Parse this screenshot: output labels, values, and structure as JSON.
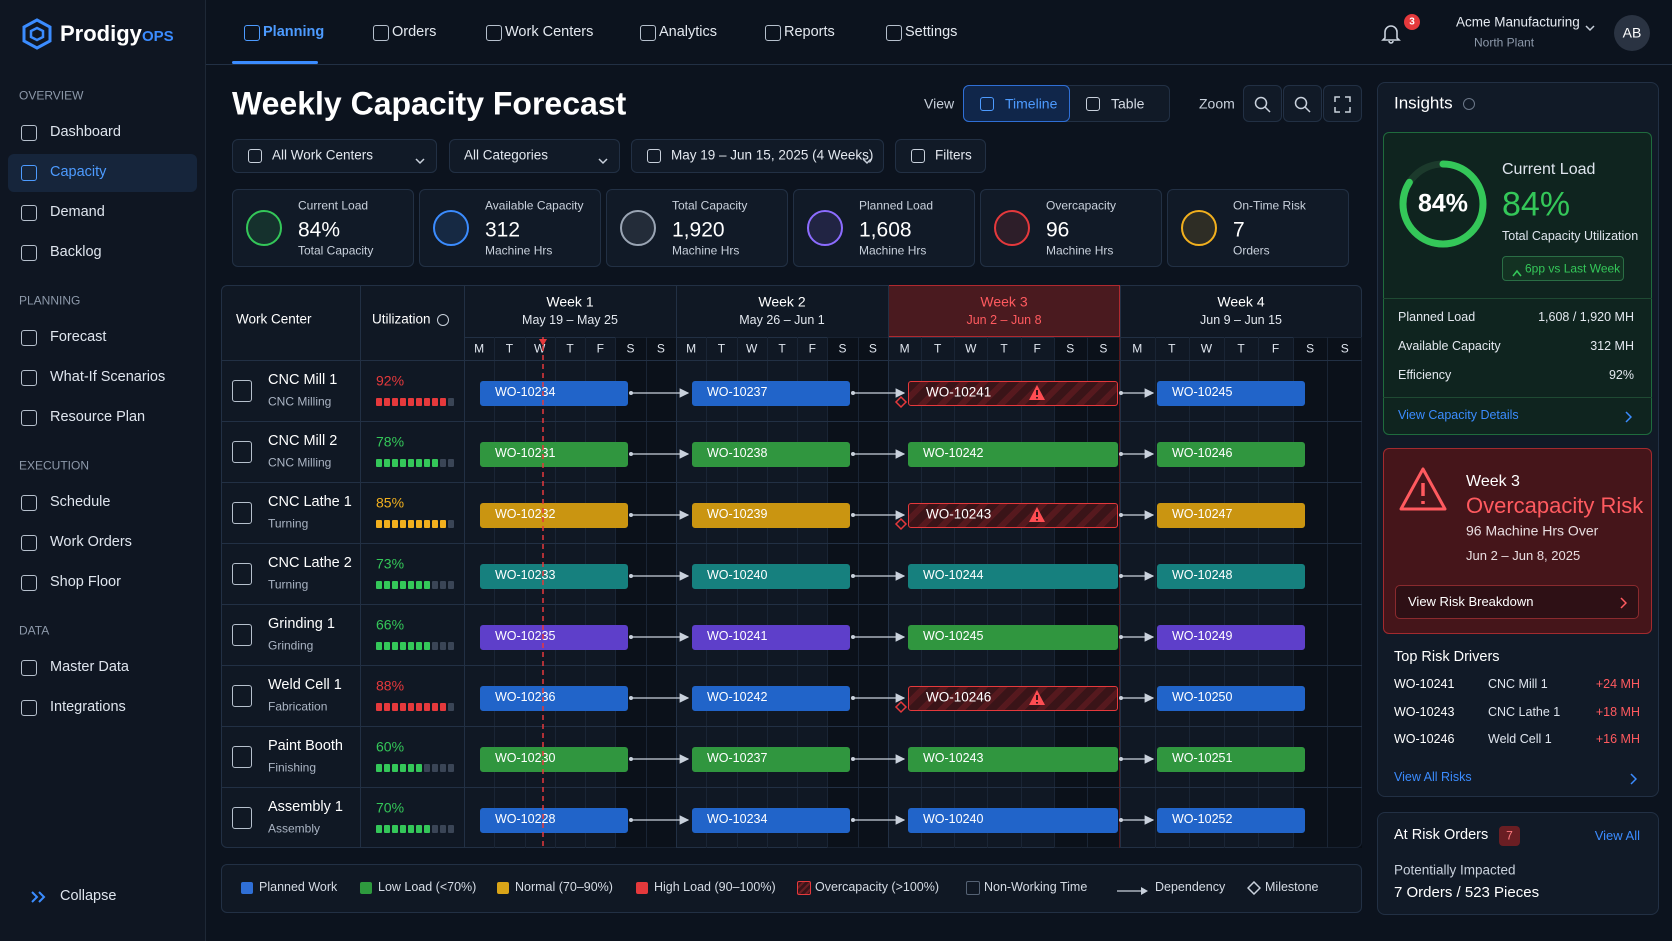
{
  "brand": {
    "name": "Prodigy",
    "suffix": "OPS"
  },
  "sidebar": {
    "sections": [
      {
        "title": "OVERVIEW",
        "items": [
          "Dashboard",
          "Capacity",
          "Demand",
          "Backlog"
        ]
      },
      {
        "title": "PLANNING",
        "items": [
          "Forecast",
          "What-If Scenarios",
          "Resource Plan"
        ]
      },
      {
        "title": "EXECUTION",
        "items": [
          "Schedule",
          "Work Orders",
          "Shop Floor"
        ]
      },
      {
        "title": "DATA",
        "items": [
          "Master Data",
          "Integrations"
        ]
      }
    ],
    "collapse": "Collapse"
  },
  "nav": {
    "tabs": [
      "Planning",
      "Orders",
      "Work Centers",
      "Analytics",
      "Reports",
      "Settings"
    ],
    "notifications": "3",
    "company": "Acme Manufacturing",
    "plant": "North Plant",
    "avatar": "AB"
  },
  "header": {
    "title": "Weekly Capacity Forecast",
    "view_label": "View",
    "views": [
      "Timeline",
      "Table"
    ],
    "zoom_label": "Zoom"
  },
  "filters": [
    "All Work Centers",
    "All Categories",
    "May 19 – Jun 15, 2025 (4 Weeks)",
    "Filters"
  ],
  "kpis": [
    {
      "label": "Current Load",
      "value": "84%",
      "sub": "Total Capacity"
    },
    {
      "label": "Available Capacity",
      "value": "312",
      "sub": "Machine Hrs"
    },
    {
      "label": "Total Capacity",
      "value": "1,920",
      "sub": "Machine Hrs"
    },
    {
      "label": "Planned Load",
      "value": "1,608",
      "sub": "Machine Hrs"
    },
    {
      "label": "Overcapacity",
      "value": "96",
      "sub": "Machine Hrs"
    },
    {
      "label": "On-Time Risk",
      "value": "7",
      "sub": "Orders"
    }
  ],
  "timeline": {
    "columns": [
      "Work Center",
      "Utilization"
    ],
    "weeks": [
      {
        "title": "Week 1",
        "range": "May 19 – May 25"
      },
      {
        "title": "Week 2",
        "range": "May 26 – Jun 1"
      },
      {
        "title": "Week 3",
        "range": "Jun 2 – Jun 8"
      },
      {
        "title": "Week 4",
        "range": "Jun 9 – Jun 15"
      }
    ],
    "days": [
      "M",
      "T",
      "W",
      "T",
      "F",
      "S",
      "S"
    ],
    "rows": [
      {
        "name": "CNC Mill 1",
        "type": "CNC Milling",
        "utilization": "92%",
        "util_color": "#e5393c",
        "orders": [
          "WO-10234",
          "WO-10237",
          "WO-10241",
          "WO-10245"
        ],
        "colors": [
          "#1f5fbf",
          "#1f5fbf",
          "#e5393c",
          "#1f5fbf"
        ],
        "risk": [
          false,
          false,
          true,
          false
        ]
      },
      {
        "name": "CNC Mill 2",
        "type": "CNC Milling",
        "utilization": "78%",
        "util_color": "#34c759",
        "orders": [
          "WO-10231",
          "WO-10238",
          "WO-10242",
          "WO-10246"
        ],
        "colors": [
          "#2e8f3c",
          "#2e8f3c",
          "#2e8f3c",
          "#2e8f3c"
        ],
        "risk": [
          false,
          false,
          false,
          false
        ]
      },
      {
        "name": "CNC Lathe 1",
        "type": "Turning",
        "utilization": "85%",
        "util_color": "#f2b01e",
        "orders": [
          "WO-10232",
          "WO-10239",
          "WO-10243",
          "WO-10247"
        ],
        "colors": [
          "#c08e10",
          "#c08e10",
          "#e5393c",
          "#c08e10"
        ],
        "risk": [
          false,
          false,
          true,
          false
        ]
      },
      {
        "name": "CNC Lathe 2",
        "type": "Turning",
        "utilization": "73%",
        "util_color": "#34c759",
        "orders": [
          "WO-10233",
          "WO-10240",
          "WO-10244",
          "WO-10248"
        ],
        "colors": [
          "#157a78",
          "#157a78",
          "#157a78",
          "#157a78"
        ],
        "risk": [
          false,
          false,
          false,
          false
        ]
      },
      {
        "name": "Grinding 1",
        "type": "Grinding",
        "utilization": "66%",
        "util_color": "#34c759",
        "orders": [
          "WO-10235",
          "WO-10241",
          "WO-10245",
          "WO-10249"
        ],
        "colors": [
          "#5a3cc0",
          "#5a3cc0",
          "#2e8f3c",
          "#5a3cc0"
        ],
        "risk": [
          false,
          false,
          false,
          false
        ]
      },
      {
        "name": "Weld Cell 1",
        "type": "Fabrication",
        "utilization": "88%",
        "util_color": "#e5393c",
        "orders": [
          "WO-10236",
          "WO-10242",
          "WO-10246",
          "WO-10250"
        ],
        "colors": [
          "#1f5fbf",
          "#1f5fbf",
          "#e5393c",
          "#1f5fbf"
        ],
        "risk": [
          false,
          false,
          true,
          false
        ]
      },
      {
        "name": "Paint Booth",
        "type": "Finishing",
        "utilization": "60%",
        "util_color": "#34c759",
        "orders": [
          "WO-10230",
          "WO-10237",
          "WO-10243",
          "WO-10251"
        ],
        "colors": [
          "#2e8f3c",
          "#2e8f3c",
          "#2e8f3c",
          "#2e8f3c"
        ],
        "risk": [
          false,
          false,
          false,
          false
        ]
      },
      {
        "name": "Assembly 1",
        "type": "Assembly",
        "utilization": "70%",
        "util_color": "#34c759",
        "orders": [
          "WO-10228",
          "WO-10234",
          "WO-10240",
          "WO-10252"
        ],
        "colors": [
          "#1f5fbf",
          "#1f5fbf",
          "#1f5fbf",
          "#1f5fbf"
        ],
        "risk": [
          false,
          false,
          false,
          false
        ]
      }
    ]
  },
  "legend": [
    {
      "label": "Planned Work",
      "color": "#2f6fd6",
      "symbol": "square"
    },
    {
      "label": "Low Load (<70%)",
      "color": "#2e9a3e",
      "symbol": "square"
    },
    {
      "label": "Normal (70–90%)",
      "color": "#d9a418",
      "symbol": "square"
    },
    {
      "label": "High Load (90–100%)",
      "color": "#e5393c",
      "symbol": "square"
    },
    {
      "label": "Overcapacity (>100%)",
      "color": "#e5393c",
      "symbol": "hatch"
    },
    {
      "label": "Non-Working Time",
      "color": "#556274",
      "symbol": "outline"
    },
    {
      "label": "Dependency",
      "color": "#c9d1dc",
      "symbol": "arrow"
    },
    {
      "label": "Milestone",
      "color": "#c9d1dc",
      "symbol": "diamond"
    }
  ],
  "insights": {
    "title": "Insights",
    "ring": "84%",
    "heading": "Current Load",
    "value": "84%",
    "caption": "Total Capacity Utilization",
    "delta": "6pp vs Last Week",
    "rows": [
      [
        "Planned Load",
        "1,608 / 1,920 MH"
      ],
      [
        "Available Capacity",
        "312 MH"
      ],
      [
        "Efficiency",
        "92%"
      ]
    ],
    "link": "View Capacity Details"
  },
  "risk": {
    "week": "Week 3",
    "title": "Overcapacity Risk",
    "detail": "96 Machine Hrs Over",
    "dates": "Jun 2 – Jun 8, 2025",
    "button": "View Risk Breakdown"
  },
  "drivers": {
    "title": "Top Risk Drivers",
    "items": [
      [
        "WO-10241",
        "CNC Mill 1",
        "+24 MH"
      ],
      [
        "WO-10243",
        "CNC Lathe 1",
        "+18 MH"
      ],
      [
        "WO-10246",
        "Weld Cell 1",
        "+16 MH"
      ]
    ],
    "link": "View All Risks"
  },
  "at_risk": {
    "title": "At Risk Orders",
    "count": "7",
    "link": "View All",
    "sub": "Potentially Impacted",
    "detail": "7 Orders / 523 Pieces"
  }
}
